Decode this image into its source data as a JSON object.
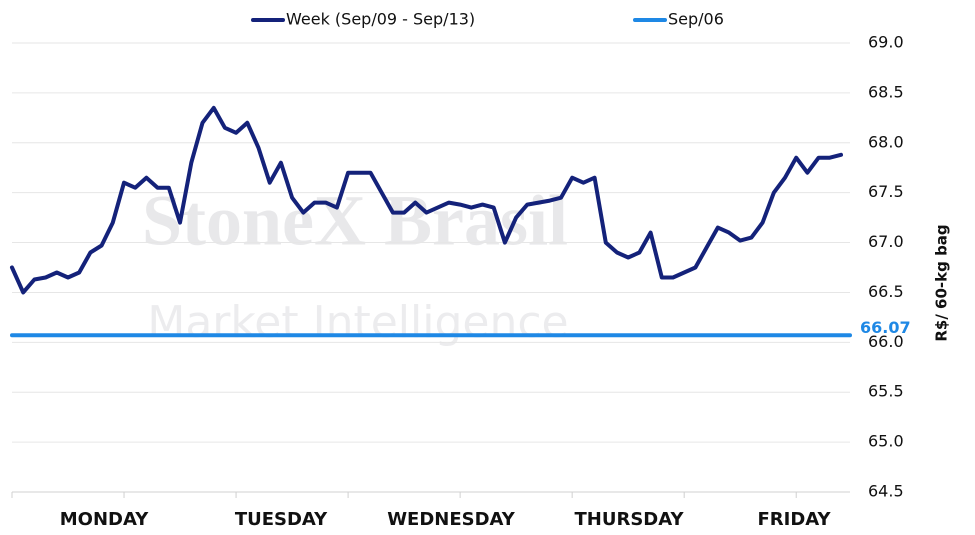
{
  "chart_data": {
    "type": "line",
    "y_axis_label": "R$/ 60-kg bag",
    "watermark": [
      "StoneX Brasil",
      "Market Intelligence"
    ],
    "day_labels": [
      "MONDAY",
      "TUESDAY",
      "WEDNESDAY",
      "THURSDAY",
      "FRIDAY"
    ],
    "xlim": [
      0,
      7.48
    ],
    "xticks": [
      0,
      1,
      2,
      3,
      4,
      5,
      6,
      7
    ],
    "ylim": [
      64.5,
      69.0
    ],
    "yticks": [
      {
        "value": 64.5,
        "label": "64.5"
      },
      {
        "value": 65,
        "label": "65.0"
      },
      {
        "value": 65.5,
        "label": "65.5"
      },
      {
        "value": 66,
        "label": "66.0"
      },
      {
        "value": 66.5,
        "label": "66.5"
      },
      {
        "value": 67,
        "label": "67.0"
      },
      {
        "value": 67.5,
        "label": "67.5"
      },
      {
        "value": 68,
        "label": "68.0"
      },
      {
        "value": 68.5,
        "label": "68.5"
      },
      {
        "value": 69,
        "label": "69.0"
      }
    ],
    "grid": true,
    "series": [
      {
        "name": "Week (Sep/09 - Sep/13)",
        "color": "#14227a",
        "x": [
          0,
          0.1,
          0.2,
          0.3,
          0.4,
          0.5,
          0.6,
          0.7,
          0.8,
          0.9,
          1,
          1.1,
          1.2,
          1.3,
          1.4,
          1.5,
          1.6,
          1.7,
          1.8,
          1.9,
          2,
          2.1,
          2.2,
          2.3,
          2.4,
          2.5,
          2.6,
          2.7,
          2.8,
          2.9,
          3,
          3.1,
          3.2,
          3.3,
          3.4,
          3.5,
          3.6,
          3.7,
          3.8,
          3.9,
          4,
          4.1,
          4.2,
          4.3,
          4.4,
          4.5,
          4.6,
          4.7,
          4.8,
          4.9,
          5,
          5.1,
          5.2,
          5.3,
          5.4,
          5.5,
          5.6,
          5.7,
          5.8,
          5.9,
          6,
          6.1,
          6.2,
          6.3,
          6.4,
          6.5,
          6.6,
          6.7,
          6.8,
          6.9,
          7,
          7.1,
          7.2,
          7.3,
          7.4
        ],
        "values": [
          66.75,
          66.5,
          66.63,
          66.65,
          66.7,
          66.65,
          66.7,
          66.9,
          66.97,
          67.2,
          67.6,
          67.55,
          67.65,
          67.55,
          67.55,
          67.2,
          67.8,
          68.2,
          68.35,
          68.15,
          68.1,
          68.2,
          67.95,
          67.6,
          67.8,
          67.45,
          67.3,
          67.4,
          67.4,
          67.35,
          67.7,
          67.7,
          67.7,
          67.5,
          67.3,
          67.3,
          67.4,
          67.3,
          67.35,
          67.4,
          67.38,
          67.35,
          67.38,
          67.35,
          67.0,
          67.25,
          67.38,
          67.4,
          67.42,
          67.45,
          67.65,
          67.6,
          67.65,
          67.0,
          66.9,
          66.85,
          66.9,
          67.1,
          66.65,
          66.65,
          66.7,
          66.75,
          66.95,
          67.15,
          67.1,
          67.02,
          67.05,
          67.2,
          67.5,
          67.65,
          67.85,
          67.7,
          67.85,
          67.85,
          67.88
        ]
      },
      {
        "name": "Sep/06",
        "color": "#1e88e5",
        "x": [
          0,
          7.48
        ],
        "values": [
          66.07,
          66.07
        ]
      }
    ]
  }
}
